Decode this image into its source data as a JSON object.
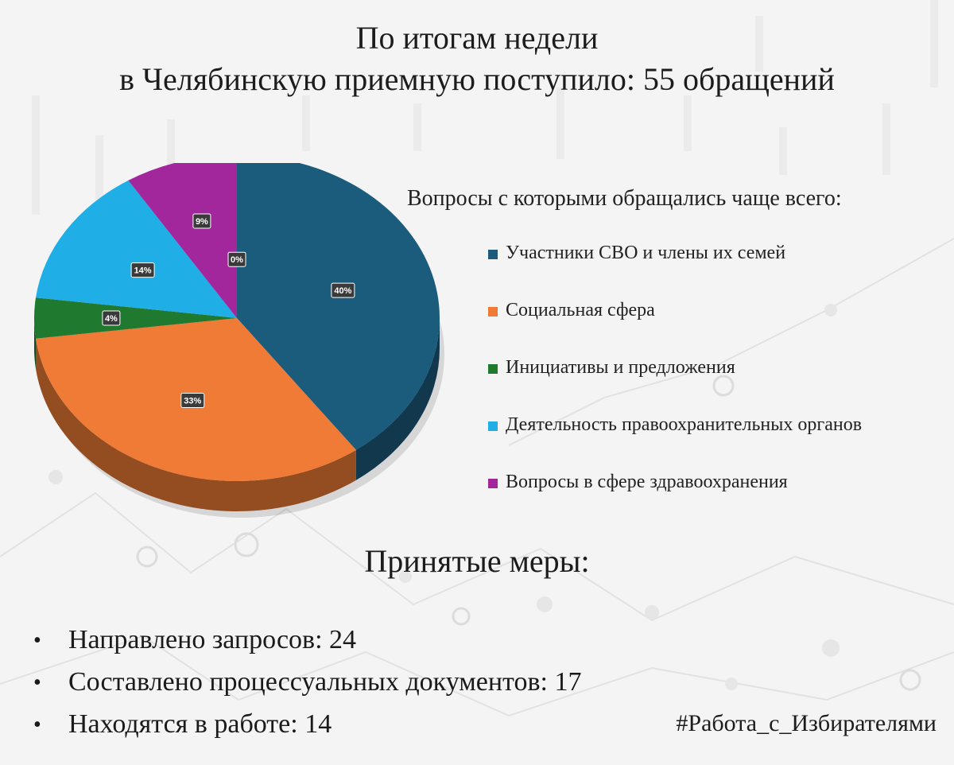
{
  "header": {
    "line1": "По итогам недели",
    "line2": "в Челябинскую приемную поступило: 55 обращений"
  },
  "legend_title": "Вопросы с которыми обращались чаще всего:",
  "chart_data": {
    "type": "pie",
    "title": "",
    "slices": [
      {
        "name": "Участники СВО и члены их семей",
        "value": 40,
        "label": "40%",
        "color": "#1b5b7c"
      },
      {
        "name": "Социальная сфера",
        "value": 33,
        "label": "33%",
        "color": "#ef7b36"
      },
      {
        "name": "Инициативы и предложения",
        "value": 4,
        "label": "4%",
        "color": "#1f7a2f"
      },
      {
        "name": "Деятельность правоохранительных органов",
        "value": 14,
        "label": "14%",
        "color": "#20aee6"
      },
      {
        "name": "Вопросы в сфере здравоохранения",
        "value": 9,
        "label": "9%",
        "color": "#a3279c"
      },
      {
        "name": "",
        "value": 0,
        "label": "0%",
        "color": "#1b5b7c"
      }
    ]
  },
  "measures": {
    "title": "Принятые меры:",
    "items": [
      "Направлено запросов: 24",
      "Составлено процессуальных документов: 17",
      "Находятся в работе: 14"
    ]
  },
  "hashtag": "#Работа_с_Избирателями"
}
